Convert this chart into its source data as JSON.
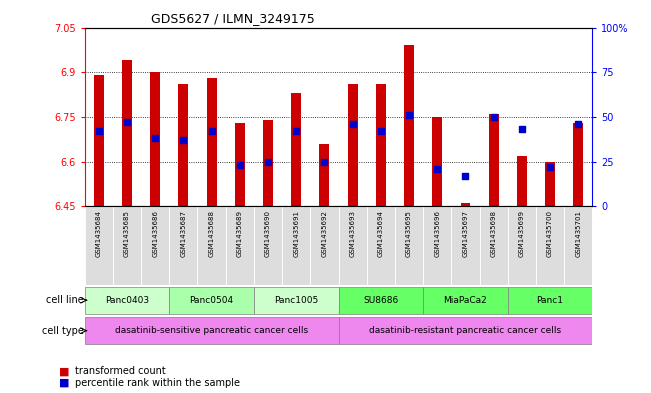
{
  "title": "GDS5627 / ILMN_3249175",
  "samples": [
    "GSM1435684",
    "GSM1435685",
    "GSM1435686",
    "GSM1435687",
    "GSM1435688",
    "GSM1435689",
    "GSM1435690",
    "GSM1435691",
    "GSM1435692",
    "GSM1435693",
    "GSM1435694",
    "GSM1435695",
    "GSM1435696",
    "GSM1435697",
    "GSM1435698",
    "GSM1435699",
    "GSM1435700",
    "GSM1435701"
  ],
  "bar_values": [
    6.89,
    6.94,
    6.9,
    6.86,
    6.88,
    6.73,
    6.74,
    6.83,
    6.66,
    6.86,
    6.86,
    6.99,
    6.75,
    6.46,
    6.76,
    6.62,
    6.6,
    6.73
  ],
  "percentile_values": [
    42,
    47,
    38,
    37,
    42,
    23,
    25,
    42,
    25,
    46,
    42,
    51,
    21,
    17,
    50,
    43,
    22,
    46
  ],
  "bar_bottom": 6.45,
  "ylim_left": [
    6.45,
    7.05
  ],
  "ylim_right": [
    0,
    100
  ],
  "yticks_left": [
    6.45,
    6.6,
    6.75,
    6.9,
    7.05
  ],
  "ytick_labels_left": [
    "6.45",
    "6.6",
    "6.75",
    "6.9",
    "7.05"
  ],
  "yticks_right": [
    0,
    25,
    50,
    75,
    100
  ],
  "ytick_labels_right": [
    "0",
    "25",
    "50",
    "75",
    "100%"
  ],
  "hlines": [
    6.6,
    6.75,
    6.9
  ],
  "bar_color": "#cc0000",
  "dot_color": "#0000cc",
  "cell_lines": [
    {
      "label": "Panc0403",
      "start": 0,
      "end": 3,
      "color": "#ccffcc"
    },
    {
      "label": "Panc0504",
      "start": 3,
      "end": 6,
      "color": "#aaffaa"
    },
    {
      "label": "Panc1005",
      "start": 6,
      "end": 9,
      "color": "#ccffcc"
    },
    {
      "label": "SU8686",
      "start": 9,
      "end": 12,
      "color": "#66ff66"
    },
    {
      "label": "MiaPaCa2",
      "start": 12,
      "end": 15,
      "color": "#66ff66"
    },
    {
      "label": "Panc1",
      "start": 15,
      "end": 18,
      "color": "#66ff66"
    }
  ],
  "cell_types": [
    {
      "label": "dasatinib-sensitive pancreatic cancer cells",
      "start": 0,
      "end": 9,
      "color": "#ee88ee"
    },
    {
      "label": "dasatinib-resistant pancreatic cancer cells",
      "start": 9,
      "end": 18,
      "color": "#ee88ee"
    }
  ],
  "sample_bg_color": "#dddddd",
  "bar_width": 0.35,
  "legend_bar_color": "#cc0000",
  "legend_dot_color": "#0000cc"
}
